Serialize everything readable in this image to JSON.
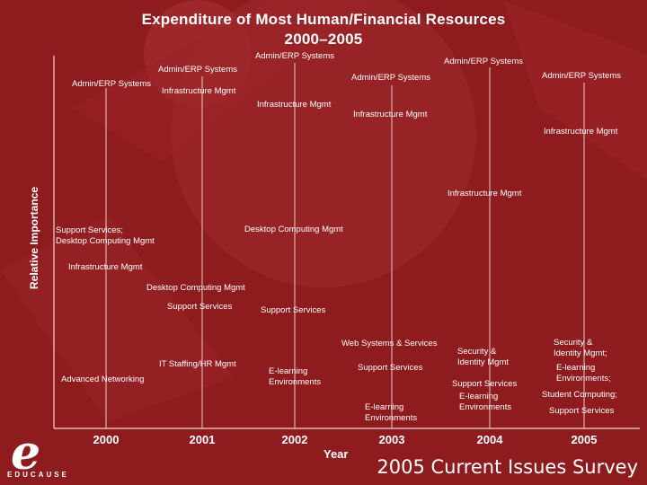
{
  "title_line1": "Expenditure of Most Human/Financial Resources",
  "title_line2": "2000–2005",
  "y_axis_label": "Relative Importance",
  "x_axis_label": "Year",
  "logo_text": "EDUCAUSE",
  "footer_text": "2005 Current Issues Survey",
  "colors": {
    "background": "#8e1b1e",
    "text": "#ffffff",
    "line": "#e9c9c9"
  },
  "chart_data": {
    "type": "table",
    "title": "Expenditure of Most Human/Financial Resources 2000–2005",
    "xlabel": "Year",
    "ylabel": "Relative Importance",
    "years": [
      "2000",
      "2001",
      "2002",
      "2003",
      "2004",
      "2005"
    ],
    "columns": [
      {
        "year": "2000",
        "entries": [
          {
            "lines": [
              "Admin/ERP Systems"
            ],
            "level": 1
          },
          {
            "lines": [
              "Support Services;",
              "Desktop Computing Mgmt"
            ],
            "level": 2
          },
          {
            "lines": [
              "Infrastructure Mgmt"
            ],
            "level": 3
          },
          {
            "lines": [
              "Advanced Networking"
            ],
            "level": 4
          }
        ]
      },
      {
        "year": "2001",
        "entries": [
          {
            "lines": [
              "Admin/ERP Systems"
            ],
            "level": 1
          },
          {
            "lines": [
              "Infrastructure Mgmt"
            ],
            "level": 2
          },
          {
            "lines": [
              "Desktop Computing Mgmt"
            ],
            "level": 3
          },
          {
            "lines": [
              "Support Services"
            ],
            "level": 4
          },
          {
            "lines": [
              "IT Staffing/HR Mgmt"
            ],
            "level": 5
          }
        ]
      },
      {
        "year": "2002",
        "entries": [
          {
            "lines": [
              "Admin/ERP Systems"
            ],
            "level": 1
          },
          {
            "lines": [
              "Infrastructure Mgmt"
            ],
            "level": 2
          },
          {
            "lines": [
              "Desktop Computing Mgmt"
            ],
            "level": 3
          },
          {
            "lines": [
              "Support Services"
            ],
            "level": 4
          },
          {
            "lines": [
              "E-learning",
              "Environments"
            ],
            "level": 5
          }
        ]
      },
      {
        "year": "2003",
        "entries": [
          {
            "lines": [
              "Admin/ERP Systems"
            ],
            "level": 1
          },
          {
            "lines": [
              "Infrastructure Mgmt"
            ],
            "level": 2
          },
          {
            "lines": [
              "Web Systems & Services"
            ],
            "level": 3
          },
          {
            "lines": [
              "Support Services"
            ],
            "level": 4
          },
          {
            "lines": [
              "E-learning",
              "Environments"
            ],
            "level": 5
          }
        ]
      },
      {
        "year": "2004",
        "entries": [
          {
            "lines": [
              "Admin/ERP Systems"
            ],
            "level": 1
          },
          {
            "lines": [
              "Infrastructure Mgmt"
            ],
            "level": 2
          },
          {
            "lines": [
              "Security &",
              "Identity Mgmt"
            ],
            "level": 3
          },
          {
            "lines": [
              "Support Services"
            ],
            "level": 4
          },
          {
            "lines": [
              "E-learning",
              "Environments"
            ],
            "level": 5
          }
        ]
      },
      {
        "year": "2005",
        "entries": [
          {
            "lines": [
              "Admin/ERP Systems"
            ],
            "level": 1
          },
          {
            "lines": [
              "Infrastructure Mgmt"
            ],
            "level": 2
          },
          {
            "lines": [
              "Security &",
              "Identity Mgmt;"
            ],
            "level": 3
          },
          {
            "lines": [
              "E-learning",
              "Environments;"
            ],
            "level": 4
          },
          {
            "lines": [
              "Student Computing;"
            ],
            "level": 5
          },
          {
            "lines": [
              "Support Services"
            ],
            "level": 6
          }
        ]
      }
    ]
  }
}
